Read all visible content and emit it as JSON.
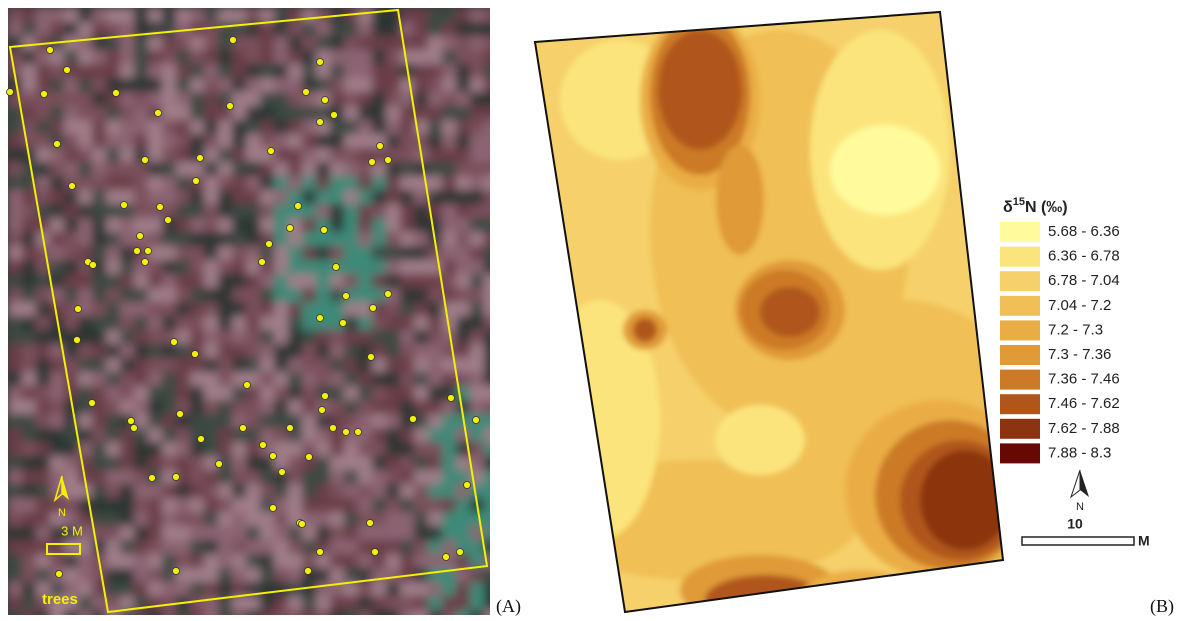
{
  "panel_a": {
    "north": "N",
    "scale": "3 M",
    "legend": "trees",
    "label": "(A)"
  },
  "panel_b": {
    "legend": {
      "title": {
        "symbol": "δ",
        "superscript": "15",
        "rest": "N (‰)"
      },
      "items": [
        {
          "label": "5.68 - 6.36",
          "color": "#fffb9c"
        },
        {
          "label": "6.36 - 6.78",
          "color": "#fbe47c"
        },
        {
          "label": "6.78 - 7.04",
          "color": "#f6d06a"
        },
        {
          "label": "7.04 - 7.2",
          "color": "#f0bf55"
        },
        {
          "label": "7.2 - 7.3",
          "color": "#eaad45"
        },
        {
          "label": "7.3 - 7.36",
          "color": "#e09a38"
        },
        {
          "label": "7.36 - 7.46",
          "color": "#cc7a28"
        },
        {
          "label": "7.46 - 7.62",
          "color": "#b0561a"
        },
        {
          "label": "7.62 - 7.88",
          "color": "#8c3410"
        },
        {
          "label": "7.88 - 8.3",
          "color": "#680805"
        }
      ]
    },
    "north": "N",
    "scale": "10",
    "scale_unit": "M",
    "label": "(B)"
  }
}
